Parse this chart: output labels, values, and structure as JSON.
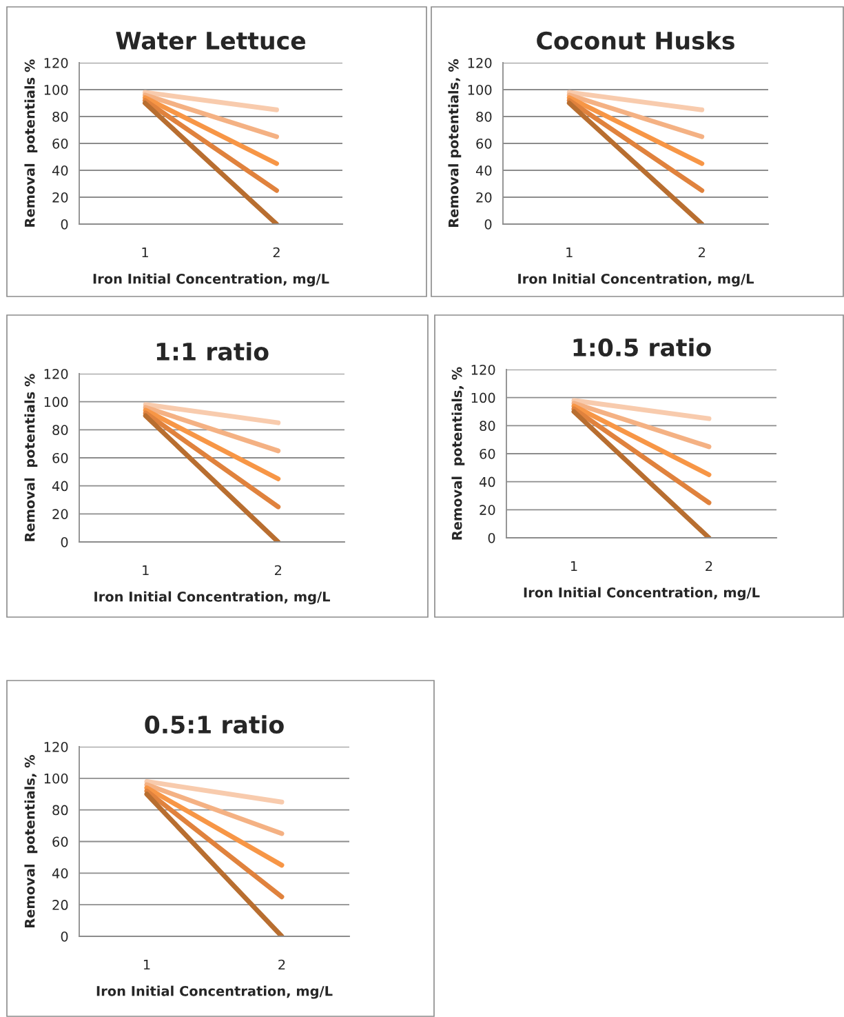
{
  "chart_data": [
    {
      "type": "line",
      "title": "Water Lettuce",
      "xlabel": "Iron Initial Concentration, mg/L",
      "ylabel": "Removal  potentials %",
      "categories": [
        "1",
        "2"
      ],
      "ylim": [
        0,
        120
      ],
      "yticks": [
        0,
        20,
        40,
        60,
        80,
        100,
        120
      ],
      "grid": "y",
      "marker": "none",
      "line_style": "solid",
      "series": [
        {
          "color": "#f8cbad",
          "values": [
            98,
            85
          ]
        },
        {
          "color": "#f4b183",
          "values": [
            96,
            65
          ]
        },
        {
          "color": "#f79646",
          "values": [
            94,
            45
          ]
        },
        {
          "color": "#e0823d",
          "values": [
            92,
            25
          ]
        },
        {
          "color": "#b86e30",
          "values": [
            90,
            0
          ]
        }
      ]
    },
    {
      "type": "line",
      "title": "Coconut Husks",
      "xlabel": "Iron Initial Concentration, mg/L",
      "ylabel": "Removal potentials, %",
      "categories": [
        "1",
        "2"
      ],
      "ylim": [
        0,
        120
      ],
      "yticks": [
        0,
        20,
        40,
        60,
        80,
        100,
        120
      ],
      "grid": "y",
      "marker": "none",
      "line_style": "solid",
      "series": [
        {
          "color": "#f8cbad",
          "values": [
            98,
            85
          ]
        },
        {
          "color": "#f4b183",
          "values": [
            96,
            65
          ]
        },
        {
          "color": "#f79646",
          "values": [
            94,
            45
          ]
        },
        {
          "color": "#e0823d",
          "values": [
            92,
            25
          ]
        },
        {
          "color": "#b86e30",
          "values": [
            90,
            0
          ]
        }
      ]
    },
    {
      "type": "line",
      "title": "1:1 ratio",
      "xlabel": "Iron Initial Concentration, mg/L",
      "ylabel": "Removal  potentials %",
      "categories": [
        "1",
        "2"
      ],
      "ylim": [
        0,
        120
      ],
      "yticks": [
        0,
        20,
        40,
        60,
        80,
        100,
        120
      ],
      "grid": "y",
      "marker": "none",
      "line_style": "solid",
      "series": [
        {
          "color": "#f8cbad",
          "values": [
            98,
            85
          ]
        },
        {
          "color": "#f4b183",
          "values": [
            96,
            65
          ]
        },
        {
          "color": "#f79646",
          "values": [
            94,
            45
          ]
        },
        {
          "color": "#e0823d",
          "values": [
            92,
            25
          ]
        },
        {
          "color": "#b86e30",
          "values": [
            90,
            0
          ]
        }
      ]
    },
    {
      "type": "line",
      "title": "1:0.5 ratio",
      "xlabel": "Iron Initial Concentration, mg/L",
      "ylabel": "Removal  potentials, %",
      "categories": [
        "1",
        "2"
      ],
      "ylim": [
        0,
        120
      ],
      "yticks": [
        0,
        20,
        40,
        60,
        80,
        100,
        120
      ],
      "grid": "y",
      "marker": "none",
      "line_style": "solid",
      "series": [
        {
          "color": "#f8cbad",
          "values": [
            98,
            85
          ]
        },
        {
          "color": "#f4b183",
          "values": [
            96,
            65
          ]
        },
        {
          "color": "#f79646",
          "values": [
            94,
            45
          ]
        },
        {
          "color": "#e0823d",
          "values": [
            92,
            25
          ]
        },
        {
          "color": "#b86e30",
          "values": [
            90,
            0
          ]
        }
      ]
    },
    {
      "type": "line",
      "title": "0.5:1 ratio",
      "xlabel": "Iron Initial Concentration, mg/L",
      "ylabel": "Removal  potentials, %",
      "categories": [
        "1",
        "2"
      ],
      "ylim": [
        0,
        120
      ],
      "yticks": [
        0,
        20,
        40,
        60,
        80,
        100,
        120
      ],
      "grid": "y",
      "marker": "none",
      "line_style": "solid",
      "series": [
        {
          "color": "#f8cbad",
          "values": [
            98,
            85
          ]
        },
        {
          "color": "#f4b183",
          "values": [
            96,
            65
          ]
        },
        {
          "color": "#f79646",
          "values": [
            94,
            45
          ]
        },
        {
          "color": "#e0823d",
          "values": [
            92,
            25
          ]
        },
        {
          "color": "#b86e30",
          "values": [
            90,
            0
          ]
        }
      ]
    }
  ]
}
